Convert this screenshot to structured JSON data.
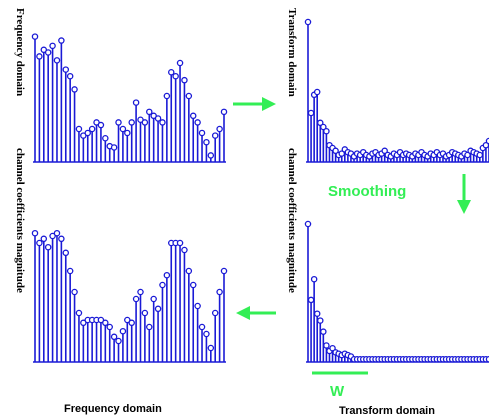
{
  "labels": {
    "left_vertical_top": "Frequency domain",
    "left_vertical_bottom": "channel coefficients magnitude",
    "right_vertical_top": "Transform domain",
    "right_vertical_bottom": "channel coefficients magnitude",
    "smoothing": "Smoothing",
    "window": "W",
    "bottom_left": "Frequency domain",
    "bottom_right": "Transform domain"
  },
  "colors": {
    "stem": "#1a1ad6",
    "arrow": "#33ee55",
    "text": "#000000"
  },
  "chart_data": [
    {
      "type": "stem",
      "panel": "top-left",
      "values": [
        0.95,
        0.8,
        0.85,
        0.83,
        0.88,
        0.77,
        0.92,
        0.7,
        0.65,
        0.55,
        0.25,
        0.2,
        0.22,
        0.25,
        0.3,
        0.28,
        0.18,
        0.12,
        0.11,
        0.3,
        0.25,
        0.22,
        0.3,
        0.45,
        0.32,
        0.3,
        0.38,
        0.35,
        0.33,
        0.3,
        0.5,
        0.68,
        0.65,
        0.75,
        0.62,
        0.5,
        0.35,
        0.3,
        0.22,
        0.15,
        0.05,
        0.2,
        0.25,
        0.38
      ]
    },
    {
      "type": "stem",
      "panel": "top-right",
      "values": [
        1.0,
        0.35,
        0.48,
        0.5,
        0.28,
        0.25,
        0.22,
        0.12,
        0.1,
        0.08,
        0.05,
        0.06,
        0.09,
        0.07,
        0.06,
        0.04,
        0.06,
        0.05,
        0.07,
        0.05,
        0.04,
        0.06,
        0.07,
        0.05,
        0.06,
        0.08,
        0.05,
        0.04,
        0.06,
        0.05,
        0.07,
        0.05,
        0.06,
        0.05,
        0.04,
        0.06,
        0.05,
        0.07,
        0.05,
        0.04,
        0.06,
        0.05,
        0.07,
        0.05,
        0.06,
        0.04,
        0.05,
        0.07,
        0.06,
        0.05,
        0.04,
        0.06,
        0.05,
        0.08,
        0.07,
        0.06,
        0.05,
        0.1,
        0.12,
        0.15
      ]
    },
    {
      "type": "stem",
      "panel": "bottom-left",
      "values": [
        0.92,
        0.85,
        0.88,
        0.82,
        0.9,
        0.92,
        0.88,
        0.78,
        0.65,
        0.5,
        0.35,
        0.28,
        0.3,
        0.3,
        0.3,
        0.3,
        0.28,
        0.25,
        0.18,
        0.15,
        0.22,
        0.3,
        0.28,
        0.45,
        0.5,
        0.35,
        0.25,
        0.45,
        0.38,
        0.55,
        0.62,
        0.85,
        0.85,
        0.85,
        0.8,
        0.65,
        0.55,
        0.4,
        0.25,
        0.2,
        0.1,
        0.35,
        0.5,
        0.65
      ]
    },
    {
      "type": "stem",
      "panel": "bottom-right",
      "values": [
        1.0,
        0.45,
        0.6,
        0.35,
        0.3,
        0.22,
        0.12,
        0.08,
        0.1,
        0.07,
        0.06,
        0.05,
        0.06,
        0.05,
        0.04,
        0.02,
        0.02,
        0.02,
        0.02,
        0.02,
        0.02,
        0.02,
        0.02,
        0.02,
        0.02,
        0.02,
        0.02,
        0.02,
        0.02,
        0.02,
        0.02,
        0.02,
        0.02,
        0.02,
        0.02,
        0.02,
        0.02,
        0.02,
        0.02,
        0.02,
        0.02,
        0.02,
        0.02,
        0.02,
        0.02,
        0.02,
        0.02,
        0.02,
        0.02,
        0.02,
        0.02,
        0.02,
        0.02,
        0.02,
        0.02,
        0.02,
        0.02,
        0.02,
        0.02,
        0.02
      ]
    }
  ]
}
